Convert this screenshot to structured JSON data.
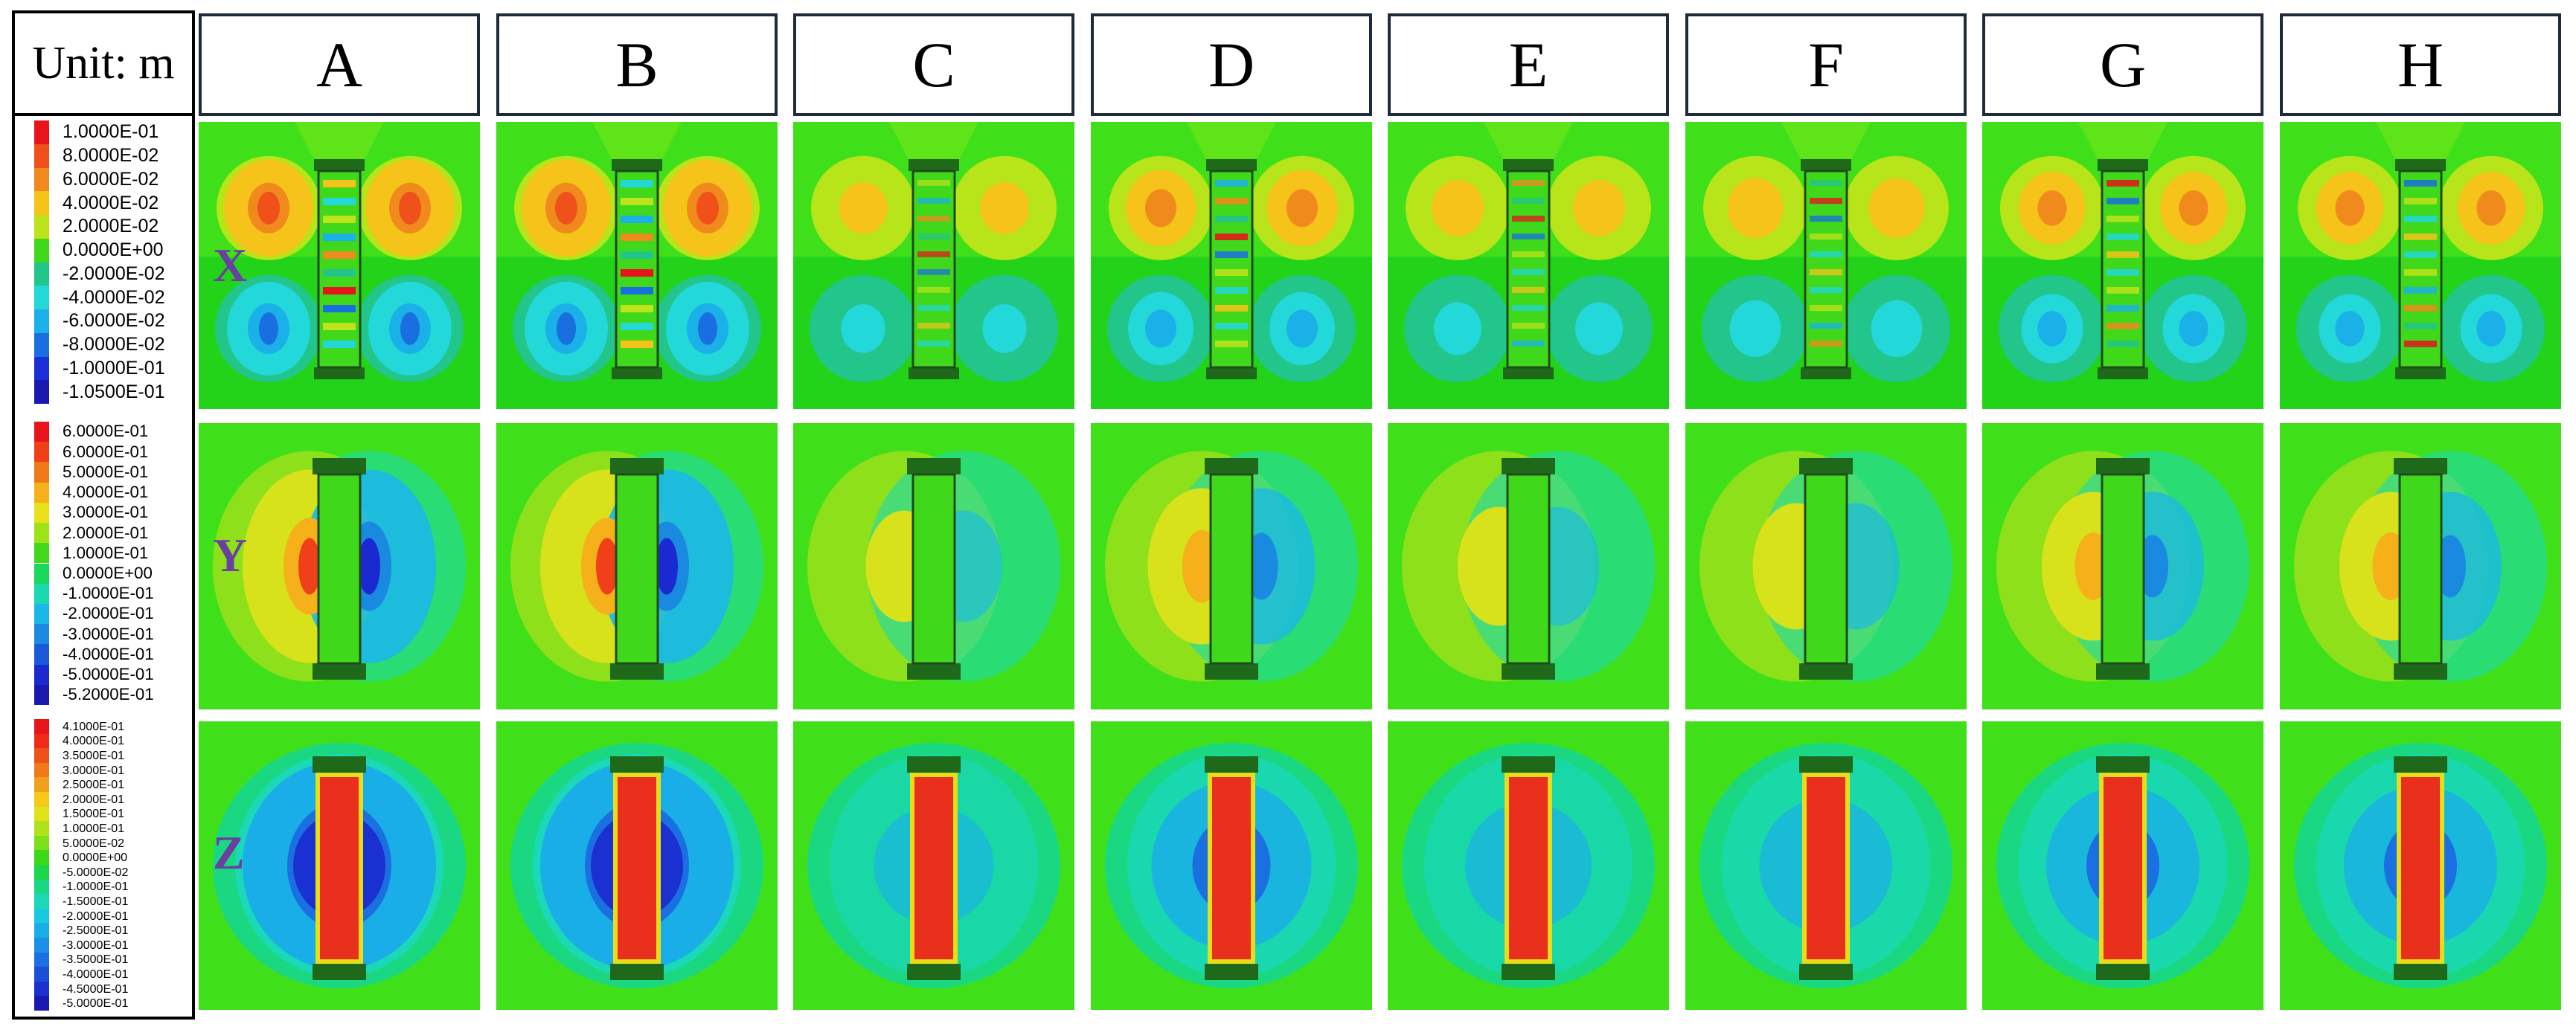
{
  "unit_label": "Unit: m",
  "columns": [
    "A",
    "B",
    "C",
    "D",
    "E",
    "F",
    "G",
    "H"
  ],
  "rows": [
    {
      "label": "X",
      "legend": [
        "1.0000E-01",
        "8.0000E-02",
        "6.0000E-02",
        "4.0000E-02",
        "2.0000E-02",
        "0.0000E+00",
        "-2.0000E-02",
        "-4.0000E-02",
        "-6.0000E-02",
        "-8.0000E-02",
        "-1.0000E-01",
        "-1.0500E-01"
      ]
    },
    {
      "label": "Y",
      "legend": [
        "6.0000E-01",
        "6.0000E-01",
        "5.0000E-01",
        "4.0000E-01",
        "3.0000E-01",
        "2.0000E-01",
        "1.0000E-01",
        "0.0000E+00",
        "-1.0000E-01",
        "-2.0000E-01",
        "-3.0000E-01",
        "-4.0000E-01",
        "-5.0000E-01",
        "-5.2000E-01"
      ]
    },
    {
      "label": "Z",
      "legend": [
        "4.1000E-01",
        "4.0000E-01",
        "3.5000E-01",
        "3.0000E-01",
        "2.5000E-01",
        "2.0000E-01",
        "1.5000E-01",
        "1.0000E-01",
        "5.0000E-02",
        "0.0000E+00",
        "-5.0000E-02",
        "-1.0000E-01",
        "-1.5000E-01",
        "-2.0000E-01",
        "-2.5000E-01",
        "-3.0000E-01",
        "-3.5000E-01",
        "-4.0000E-01",
        "-4.5000E-01",
        "-5.0000E-01"
      ]
    }
  ],
  "colors": {
    "legend_x": [
      "#e8141c",
      "#f0501a",
      "#f08a1c",
      "#f5c31a",
      "#bde31a",
      "#3fd81a",
      "#22c58a",
      "#22d8d8",
      "#1ab0e8",
      "#1a6fe0",
      "#1a2fd8",
      "#1a1ab0"
    ],
    "legend_y": [
      "#e8141c",
      "#f0401a",
      "#f07a1a",
      "#f5b01a",
      "#e8e01a",
      "#9ee21a",
      "#44d81a",
      "#1ad85a",
      "#1ad8b0",
      "#1ab8e8",
      "#1a8ae0",
      "#1a5ad8",
      "#1a2ad0",
      "#1a1ab0"
    ],
    "legend_z": [
      "#e8141c",
      "#f02a1a",
      "#f0501a",
      "#f07a1a",
      "#f0a01a",
      "#f5c81a",
      "#e0e21a",
      "#b0e21a",
      "#7ee01a",
      "#3ed81a",
      "#1ad84a",
      "#1ad882",
      "#1ad8b8",
      "#1ac8e0",
      "#1aaee8",
      "#1a90e8",
      "#1a70e0",
      "#1a50d8",
      "#1a30d0",
      "#1a1ab0"
    ],
    "background": "#3fe01a",
    "label_purple": "#6b3fa0"
  }
}
